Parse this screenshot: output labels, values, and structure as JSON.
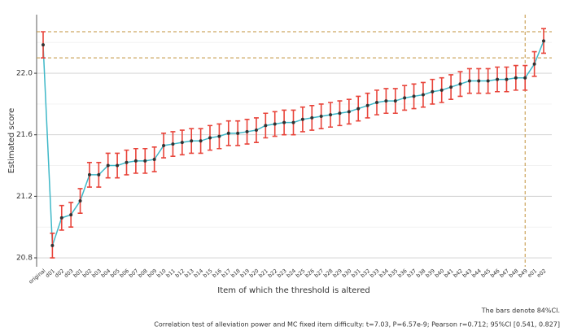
{
  "chart_data": {
    "type": "line",
    "xlabel": "Item of which the threshold is altered",
    "ylabel": "Estimated score",
    "notes": [
      "The bars denote 84%CI.",
      "Correlation test of alleviation power and MC fixed item difficulty: t=7.03, P=6.57e-9; Pearson r=0.712; 95%CI [0.541, 0.827]"
    ],
    "categories": [
      "original",
      "d01",
      "d02",
      "d03",
      "b01",
      "b02",
      "b03",
      "b04",
      "b05",
      "b06",
      "b07",
      "b08",
      "b09",
      "b10",
      "b11",
      "b12",
      "b13",
      "b14",
      "b15",
      "b16",
      "b17",
      "b18",
      "b19",
      "b20",
      "b21",
      "b22",
      "b23",
      "b24",
      "b25",
      "b26",
      "b27",
      "b28",
      "b29",
      "b30",
      "b31",
      "b32",
      "b33",
      "b34",
      "b35",
      "b36",
      "b37",
      "b38",
      "b39",
      "b40",
      "b41",
      "b42",
      "b43",
      "b44",
      "b45",
      "b46",
      "b47",
      "b48",
      "b49",
      "e01",
      "e02"
    ],
    "series": [
      {
        "name": "Estimated score",
        "color": "#3fb8c8",
        "marker_color": "#333333",
        "error_color": "#e8443a",
        "values": [
          22.185,
          20.88,
          21.06,
          21.08,
          21.17,
          21.34,
          21.34,
          21.4,
          21.4,
          21.42,
          21.43,
          21.43,
          21.44,
          21.53,
          21.54,
          21.55,
          21.56,
          21.56,
          21.58,
          21.59,
          21.61,
          21.61,
          21.62,
          21.63,
          21.66,
          21.67,
          21.68,
          21.68,
          21.7,
          21.71,
          21.72,
          21.73,
          21.74,
          21.75,
          21.77,
          21.79,
          21.81,
          21.82,
          21.82,
          21.84,
          21.85,
          21.86,
          21.88,
          21.89,
          21.91,
          21.93,
          21.95,
          21.95,
          21.95,
          21.96,
          21.96,
          21.97,
          21.97,
          22.06,
          22.21
        ],
        "errors": [
          0.085,
          0.08,
          0.08,
          0.08,
          0.08,
          0.08,
          0.08,
          0.08,
          0.08,
          0.08,
          0.08,
          0.08,
          0.08,
          0.08,
          0.08,
          0.08,
          0.08,
          0.08,
          0.08,
          0.08,
          0.08,
          0.08,
          0.08,
          0.08,
          0.08,
          0.08,
          0.08,
          0.08,
          0.08,
          0.08,
          0.08,
          0.08,
          0.08,
          0.08,
          0.08,
          0.08,
          0.08,
          0.08,
          0.08,
          0.08,
          0.08,
          0.08,
          0.08,
          0.08,
          0.08,
          0.08,
          0.08,
          0.08,
          0.08,
          0.08,
          0.08,
          0.08,
          0.08,
          0.08,
          0.08
        ]
      }
    ],
    "ylim": [
      20.742,
      22.381
    ],
    "yticks": [
      {
        "value": 20.8,
        "label": "20.8"
      },
      {
        "value": 21.2,
        "label": "21.2"
      },
      {
        "value": 21.6,
        "label": "21.6"
      },
      {
        "value": 22,
        "label": "22.0"
      }
    ],
    "minor_yticks": [
      21.0,
      21.4,
      21.8,
      22.2
    ],
    "grid": true,
    "hlines": [
      22.27,
      22.1
    ],
    "vline_category": 52,
    "ref_color": "#c0913a"
  }
}
